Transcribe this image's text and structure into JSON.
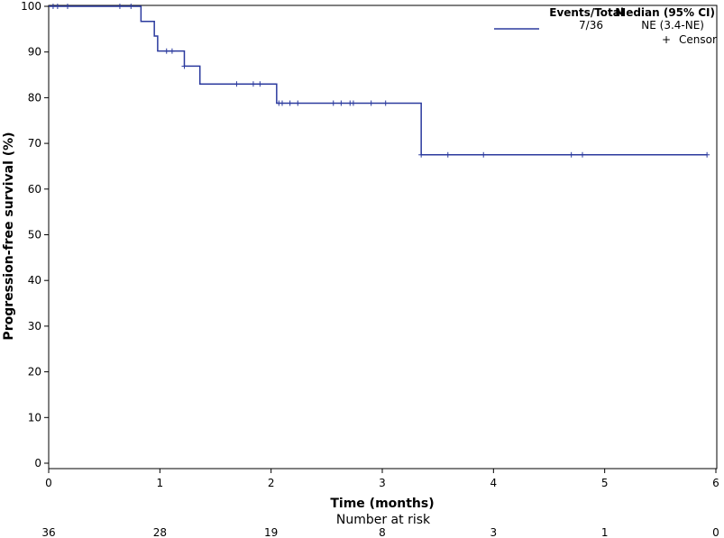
{
  "chart_data": {
    "type": "line",
    "subtype": "kaplan-meier",
    "xlabel": "Time (months)",
    "ylabel": "Progression-free survival (%)",
    "xlim": [
      0,
      6
    ],
    "ylim": [
      0,
      100
    ],
    "xticks": [
      0,
      1,
      2,
      3,
      4,
      5,
      6
    ],
    "yticks": [
      0,
      10,
      20,
      30,
      40,
      50,
      60,
      70,
      80,
      90,
      100
    ],
    "grid": false,
    "legend_position": "top-right",
    "line_color": "#2b3a9e",
    "legend": {
      "headers": [
        "Events/Total",
        "Median (95% CI)"
      ],
      "rows": [
        {
          "events_total": "7/36",
          "median": "NE (3.4-NE)"
        }
      ],
      "censor_label": "Censor",
      "censor_symbol": "+"
    },
    "series": [
      {
        "steps": [
          {
            "x": 0,
            "y": 100
          },
          {
            "x": 0.83,
            "y": 96.7
          },
          {
            "x": 0.95,
            "y": 93.5
          },
          {
            "x": 0.98,
            "y": 90.2
          },
          {
            "x": 1.22,
            "y": 86.9
          },
          {
            "x": 1.36,
            "y": 83.0
          },
          {
            "x": 2.05,
            "y": 78.8
          },
          {
            "x": 3.35,
            "y": 67.5
          }
        ],
        "end_x": 5.92,
        "censors": [
          {
            "x": 0.04,
            "y": 100
          },
          {
            "x": 0.08,
            "y": 100
          },
          {
            "x": 0.17,
            "y": 100
          },
          {
            "x": 0.64,
            "y": 100
          },
          {
            "x": 0.74,
            "y": 100
          },
          {
            "x": 1.06,
            "y": 90.2
          },
          {
            "x": 1.11,
            "y": 90.2
          },
          {
            "x": 1.22,
            "y": 86.9
          },
          {
            "x": 1.69,
            "y": 83.0
          },
          {
            "x": 1.84,
            "y": 83.0
          },
          {
            "x": 1.9,
            "y": 83.0
          },
          {
            "x": 2.07,
            "y": 78.8
          },
          {
            "x": 2.1,
            "y": 78.8
          },
          {
            "x": 2.17,
            "y": 78.8
          },
          {
            "x": 2.24,
            "y": 78.8
          },
          {
            "x": 2.56,
            "y": 78.8
          },
          {
            "x": 2.63,
            "y": 78.8
          },
          {
            "x": 2.71,
            "y": 78.8
          },
          {
            "x": 2.74,
            "y": 78.8
          },
          {
            "x": 2.9,
            "y": 78.8
          },
          {
            "x": 3.03,
            "y": 78.8
          },
          {
            "x": 3.35,
            "y": 67.5
          },
          {
            "x": 3.59,
            "y": 67.5
          },
          {
            "x": 3.91,
            "y": 67.5
          },
          {
            "x": 4.7,
            "y": 67.5
          },
          {
            "x": 4.8,
            "y": 67.5
          },
          {
            "x": 5.92,
            "y": 67.5
          }
        ]
      }
    ],
    "risk_table": {
      "title": "Number at risk",
      "times": [
        0,
        1,
        2,
        3,
        4,
        5,
        6
      ],
      "values": [
        "36",
        "28",
        "19",
        "8",
        "3",
        "1",
        "0"
      ]
    }
  }
}
